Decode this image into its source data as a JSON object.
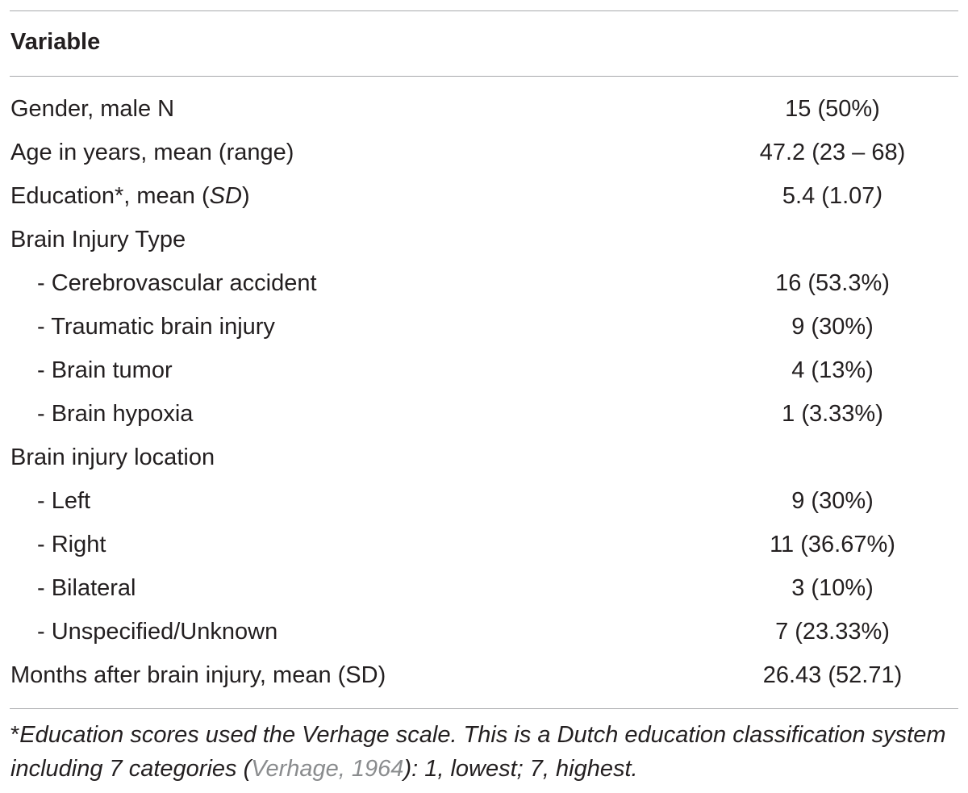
{
  "table": {
    "header": "Variable",
    "rows": [
      {
        "label": "Gender, male N",
        "value": "15 (50%)"
      },
      {
        "label": "Age in years, mean (range)",
        "value": "47.2 (23 – 68)"
      },
      {
        "label_pre": "Education*, mean (",
        "label_it": "SD",
        "label_post": ")",
        "value_pre": "5.4 (1.07",
        "value_it": ")"
      },
      {
        "label": "Brain Injury Type",
        "value": ""
      },
      {
        "label": "- Cerebrovascular accident",
        "value": "16 (53.3%)"
      },
      {
        "label": "- Traumatic brain injury",
        "value": "9 (30%)"
      },
      {
        "label": "- Brain tumor",
        "value": "4 (13%)"
      },
      {
        "label": "- Brain hypoxia",
        "value": "1 (3.33%)"
      },
      {
        "label": "Brain injury location",
        "value": ""
      },
      {
        "label": "- Left",
        "value": "9 (30%)"
      },
      {
        "label": "- Right",
        "value": "11 (36.67%)"
      },
      {
        "label": "- Bilateral",
        "value": "3 (10%)"
      },
      {
        "label": "- Unspecified/Unknown",
        "value": "7 (23.33%)"
      },
      {
        "label": "Months after brain injury, mean (SD)",
        "value": "26.43 (52.71)"
      }
    ]
  },
  "footnote": {
    "star": "*",
    "text_a": "Education scores used the Verhage scale. This is a Dutch education classification system including 7 categories (",
    "citation": "Verhage, 1964",
    "text_b": "): 1, lowest; 7, highest."
  }
}
